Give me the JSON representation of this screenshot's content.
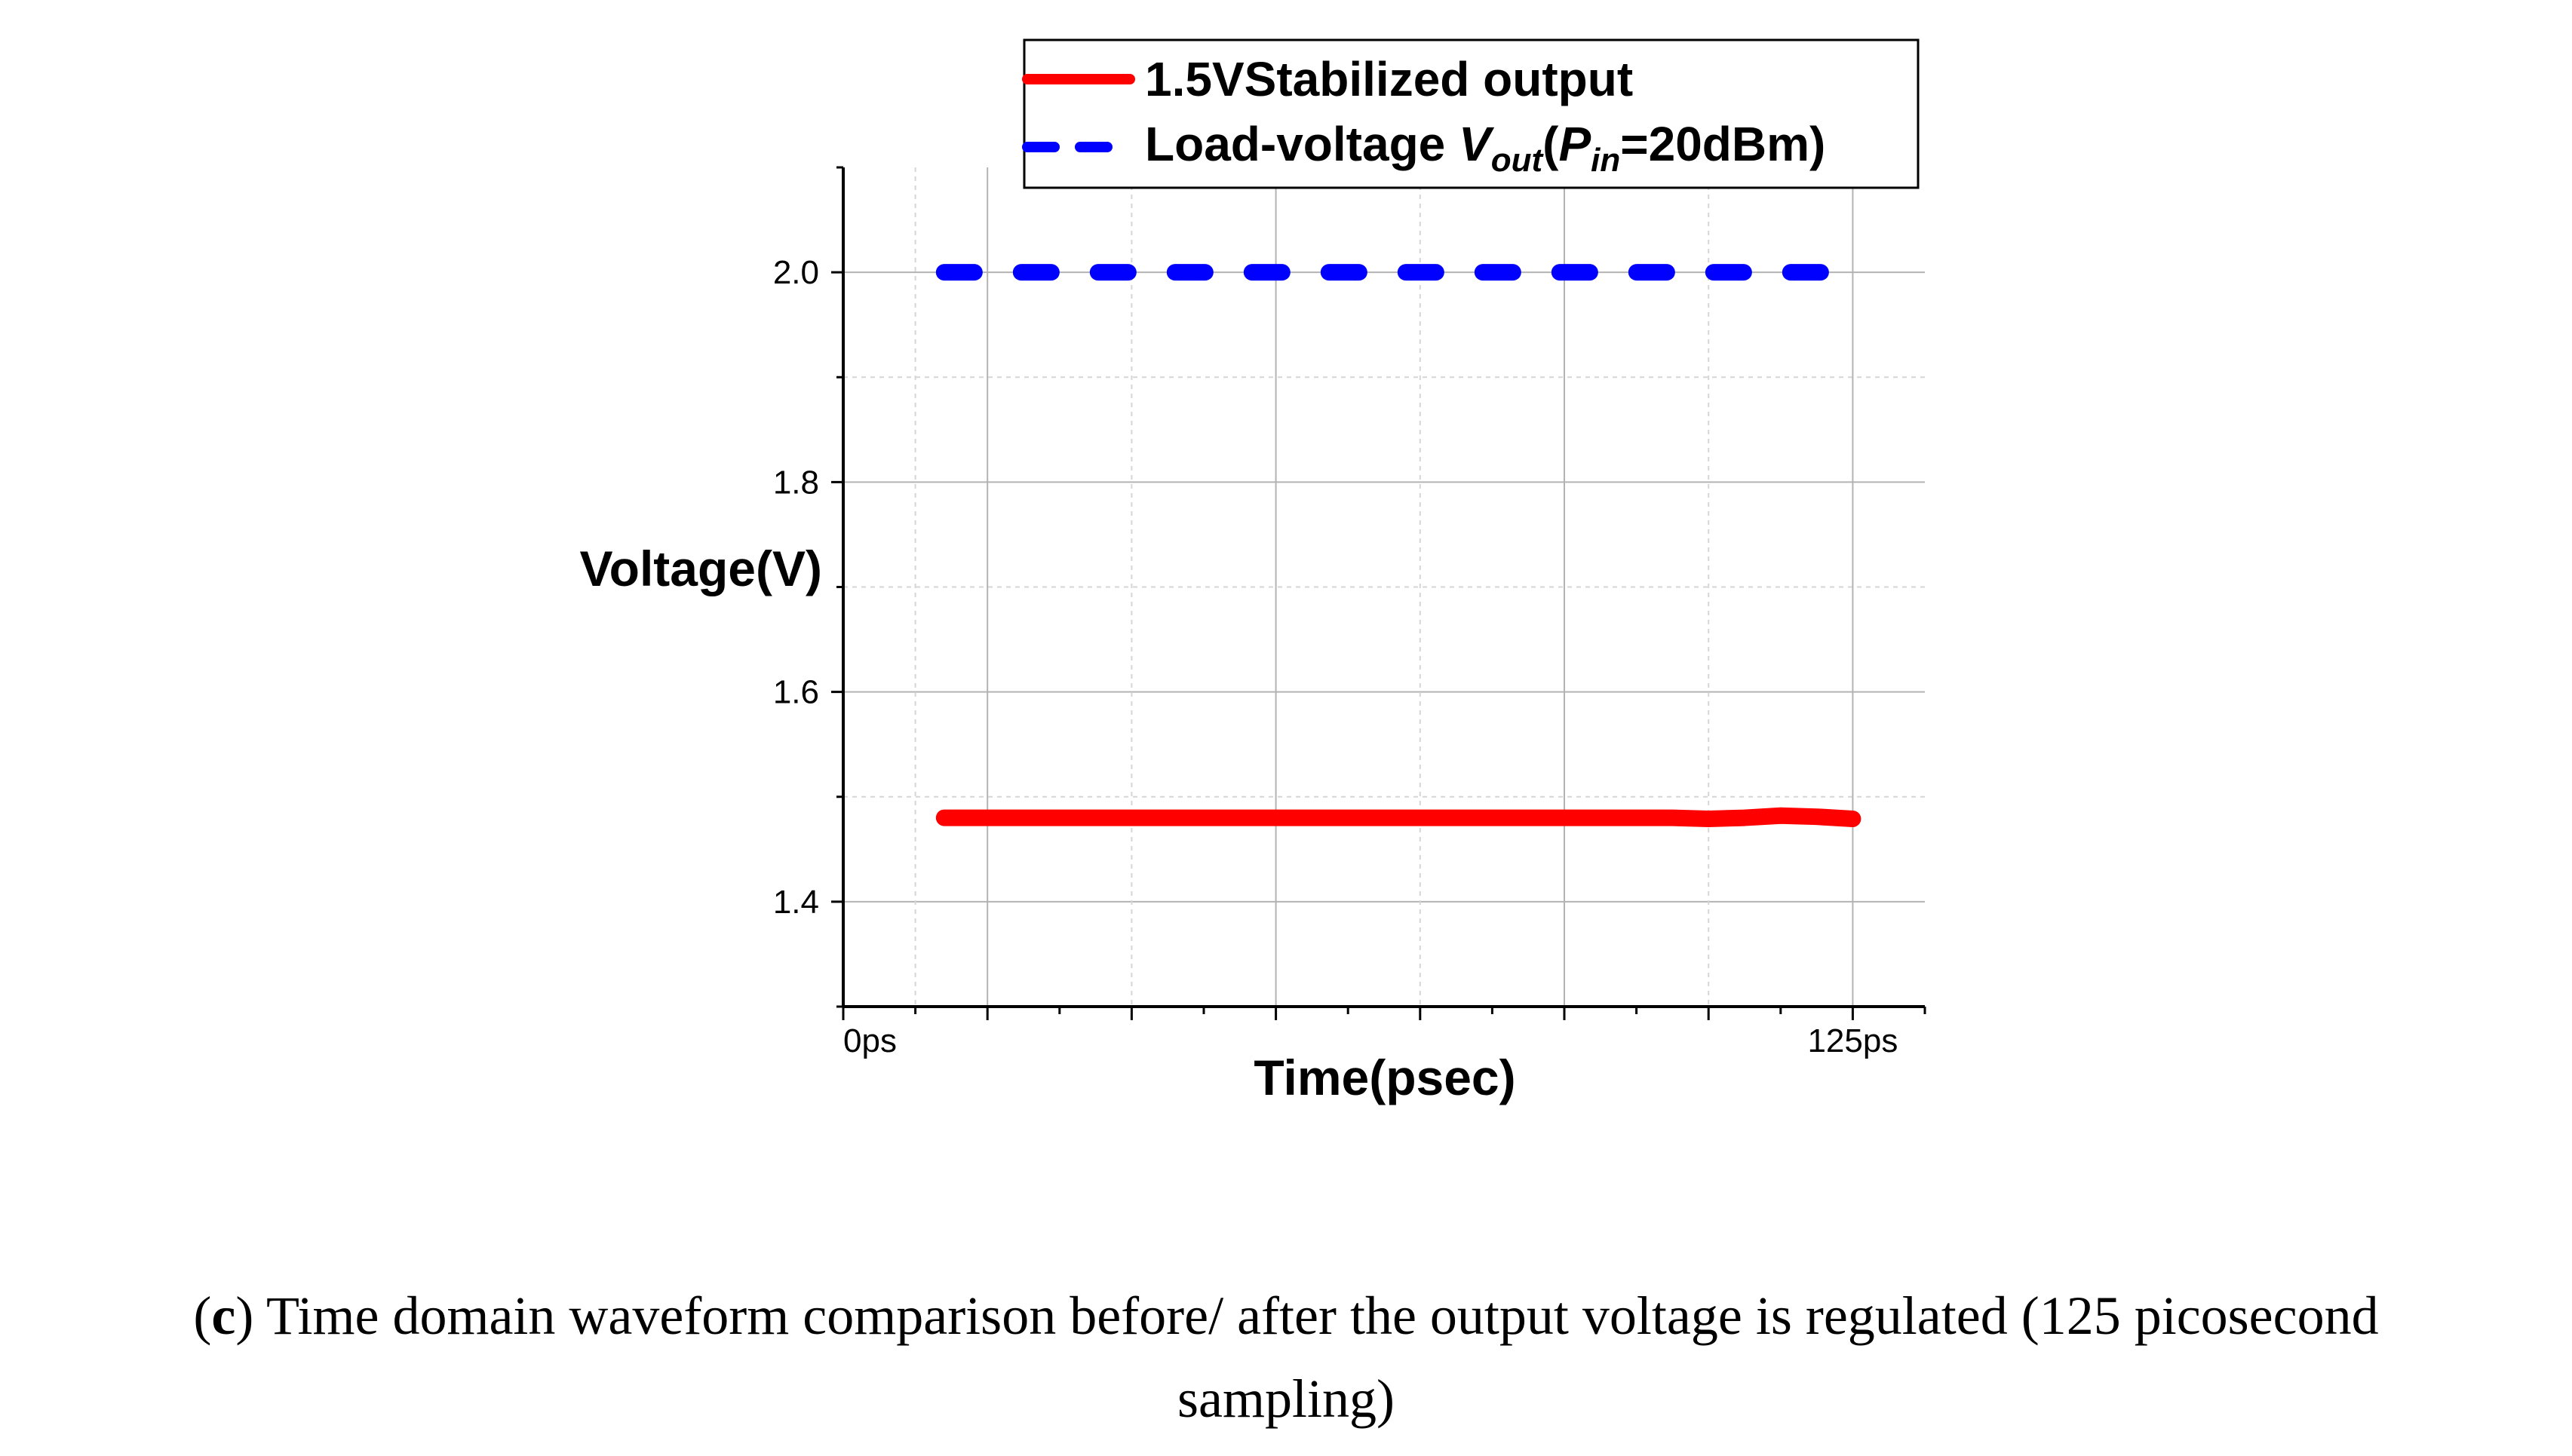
{
  "chart_data": {
    "type": "line",
    "xlabel": "Time(psec)",
    "ylabel": "Voltage(V)",
    "xlim": [
      0,
      150
    ],
    "ylim": [
      1.3,
      2.1
    ],
    "x_tick_labels": [
      {
        "x": 0,
        "label": "0ps"
      },
      {
        "x": 140,
        "label": "125ps"
      }
    ],
    "y_ticks": [
      1.4,
      1.6,
      1.8,
      2.0
    ],
    "y_tick_labels": [
      "1.4",
      "1.6",
      "1.8",
      "2.0"
    ],
    "grid": true,
    "legend_position": "top",
    "series": [
      {
        "name": "1.5VStabilized output",
        "color": "#ff0000",
        "style": "solid",
        "x": [
          14,
          30,
          50,
          70,
          90,
          100,
          105,
          110,
          115,
          120,
          125,
          130,
          135,
          140
        ],
        "y": [
          1.48,
          1.48,
          1.48,
          1.48,
          1.48,
          1.48,
          1.48,
          1.48,
          1.48,
          1.479,
          1.48,
          1.482,
          1.481,
          1.479
        ]
      },
      {
        "name": "Load-voltage Vout(Pin=20dBm)",
        "color": "#0000ff",
        "style": "dashed",
        "x": [
          14,
          140
        ],
        "y": [
          2.0,
          2.0
        ]
      }
    ],
    "legend": {
      "items": [
        {
          "text": "1.5VStabilized output"
        },
        {
          "text_main": "Load-voltage ",
          "v": "V",
          "out": "out",
          "paren_open": "(",
          "p": "P",
          "in": "in",
          "rest": "=20dBm)"
        }
      ]
    }
  },
  "caption": {
    "letter": "c",
    "text_before": "(",
    "text_after": ") Time domain waveform comparison before/ after the output voltage is regulated (125 picosecond",
    "line2": "sampling)"
  }
}
